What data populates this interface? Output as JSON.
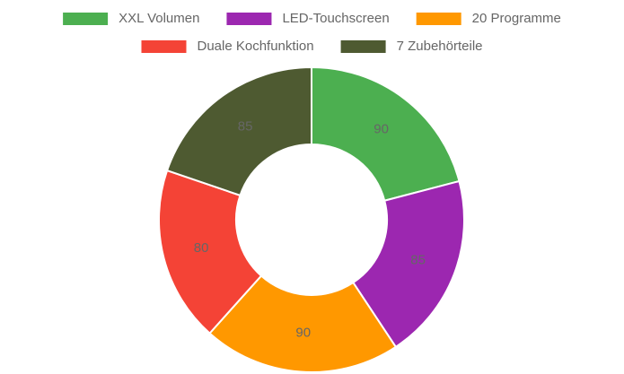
{
  "chart_data": {
    "type": "doughnut",
    "categories": [
      "XXL Volumen",
      "LED-Touchscreen",
      "20 Programme",
      "Duale Kochfunktion",
      "7 Zubehörteile"
    ],
    "values": [
      90,
      85,
      90,
      80,
      85
    ],
    "colors": [
      "#4caf50",
      "#9c27b0",
      "#ff9800",
      "#f44336",
      "#4e5a31"
    ],
    "legend": "top"
  }
}
